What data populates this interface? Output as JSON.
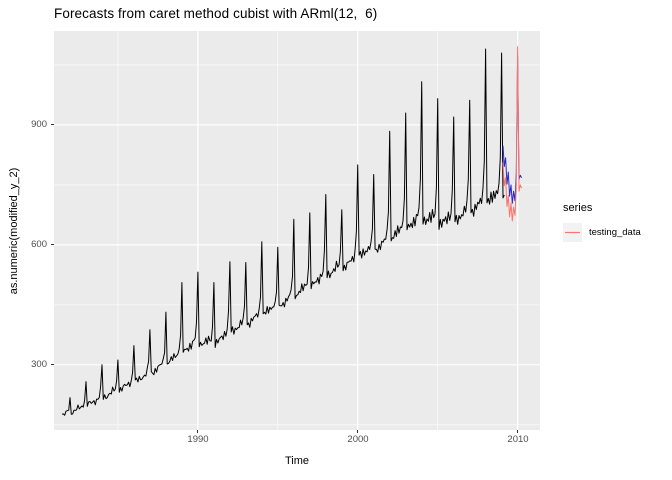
{
  "chart_data": {
    "type": "line",
    "title": "Forecasts from caret method cubist with ARml(12,  6)",
    "xlabel": "Time",
    "ylabel": "as.numeric(modified_y_2)",
    "x_tick_labels": [
      "1990",
      "2000",
      "2010"
    ],
    "x_tick_values": [
      1990,
      2000,
      2010
    ],
    "y_tick_labels": [
      "300",
      "600",
      "900"
    ],
    "y_tick_values": [
      300,
      600,
      900
    ],
    "x_minor_gridlines": [
      1985,
      1995,
      2005
    ],
    "y_minor_gridlines": [
      150,
      450,
      750,
      1050
    ],
    "x_range": [
      1981.0,
      2011.4
    ],
    "y_range": [
      137,
      1135
    ],
    "grid": "on",
    "panel_bg": "#EBEBEB",
    "grid_color": "#FFFFFF",
    "legend": {
      "position": "right",
      "title": "series",
      "key_fill": "#F2F2F2",
      "entries": [
        {
          "label": "testing_data",
          "color": "#F8766D"
        }
      ]
    },
    "series": [
      {
        "name": "historical_data",
        "color": "#000000",
        "kind": "seasonal_anchors",
        "frequency": "monthly",
        "start": 1981.5,
        "end": 2009.17,
        "seasonal_shape": [
          1,
          0.03,
          0.07,
          0.02,
          0.08,
          0.04,
          0.1,
          0.05,
          0.12,
          0.08,
          0.14,
          0.32
        ],
        "jitter": {
          "a": 5,
          "fa": 2.17,
          "b": 3.5,
          "fb": 0.71
        },
        "yearly_anchors": [
          {
            "year": 1981,
            "base": 172,
            "jan_peak": 172
          },
          {
            "year": 1982,
            "base": 178,
            "jan_peak": 218
          },
          {
            "year": 1983,
            "base": 196,
            "jan_peak": 258
          },
          {
            "year": 1984,
            "base": 212,
            "jan_peak": 300
          },
          {
            "year": 1985,
            "base": 232,
            "jan_peak": 312
          },
          {
            "year": 1986,
            "base": 252,
            "jan_peak": 348
          },
          {
            "year": 1987,
            "base": 272,
            "jan_peak": 388
          },
          {
            "year": 1988,
            "base": 296,
            "jan_peak": 432
          },
          {
            "year": 1989,
            "base": 322,
            "jan_peak": 506
          },
          {
            "year": 1990,
            "base": 346,
            "jan_peak": 532
          },
          {
            "year": 1991,
            "base": 342,
            "jan_peak": 506
          },
          {
            "year": 1992,
            "base": 372,
            "jan_peak": 558
          },
          {
            "year": 1993,
            "base": 392,
            "jan_peak": 556
          },
          {
            "year": 1994,
            "base": 416,
            "jan_peak": 608
          },
          {
            "year": 1995,
            "base": 436,
            "jan_peak": 594
          },
          {
            "year": 1996,
            "base": 462,
            "jan_peak": 664
          },
          {
            "year": 1997,
            "base": 486,
            "jan_peak": 680
          },
          {
            "year": 1998,
            "base": 512,
            "jan_peak": 726
          },
          {
            "year": 1999,
            "base": 532,
            "jan_peak": 688
          },
          {
            "year": 2000,
            "base": 560,
            "jan_peak": 800
          },
          {
            "year": 2001,
            "base": 576,
            "jan_peak": 776
          },
          {
            "year": 2002,
            "base": 600,
            "jan_peak": 884
          },
          {
            "year": 2003,
            "base": 626,
            "jan_peak": 930
          },
          {
            "year": 2004,
            "base": 648,
            "jan_peak": 1008
          },
          {
            "year": 2005,
            "base": 634,
            "jan_peak": 966
          },
          {
            "year": 2006,
            "base": 644,
            "jan_peak": 920
          },
          {
            "year": 2007,
            "base": 668,
            "jan_peak": 962
          },
          {
            "year": 2008,
            "base": 688,
            "jan_peak": 1090
          },
          {
            "year": 2009,
            "base": 700,
            "jan_peak": 1080
          },
          {
            "year": 2010,
            "base": 710,
            "jan_peak": 1080
          }
        ]
      },
      {
        "name": "forecast",
        "color": "#2929CC",
        "kind": "points",
        "frequency": "monthly",
        "start": 2009.0833,
        "values": [
          848,
          796,
          818,
          752,
          782,
          722,
          750,
          704,
          734,
          710,
          780,
          1072,
          764,
          774,
          768
        ]
      },
      {
        "name": "testing_data",
        "color": "#F8766D",
        "kind": "points",
        "frequency": "monthly",
        "start": 2009.0833,
        "values": [
          806,
          748,
          768,
          696,
          724,
          670,
          704,
          660,
          694,
          674,
          750,
          1096,
          734,
          750,
          742
        ]
      }
    ]
  }
}
